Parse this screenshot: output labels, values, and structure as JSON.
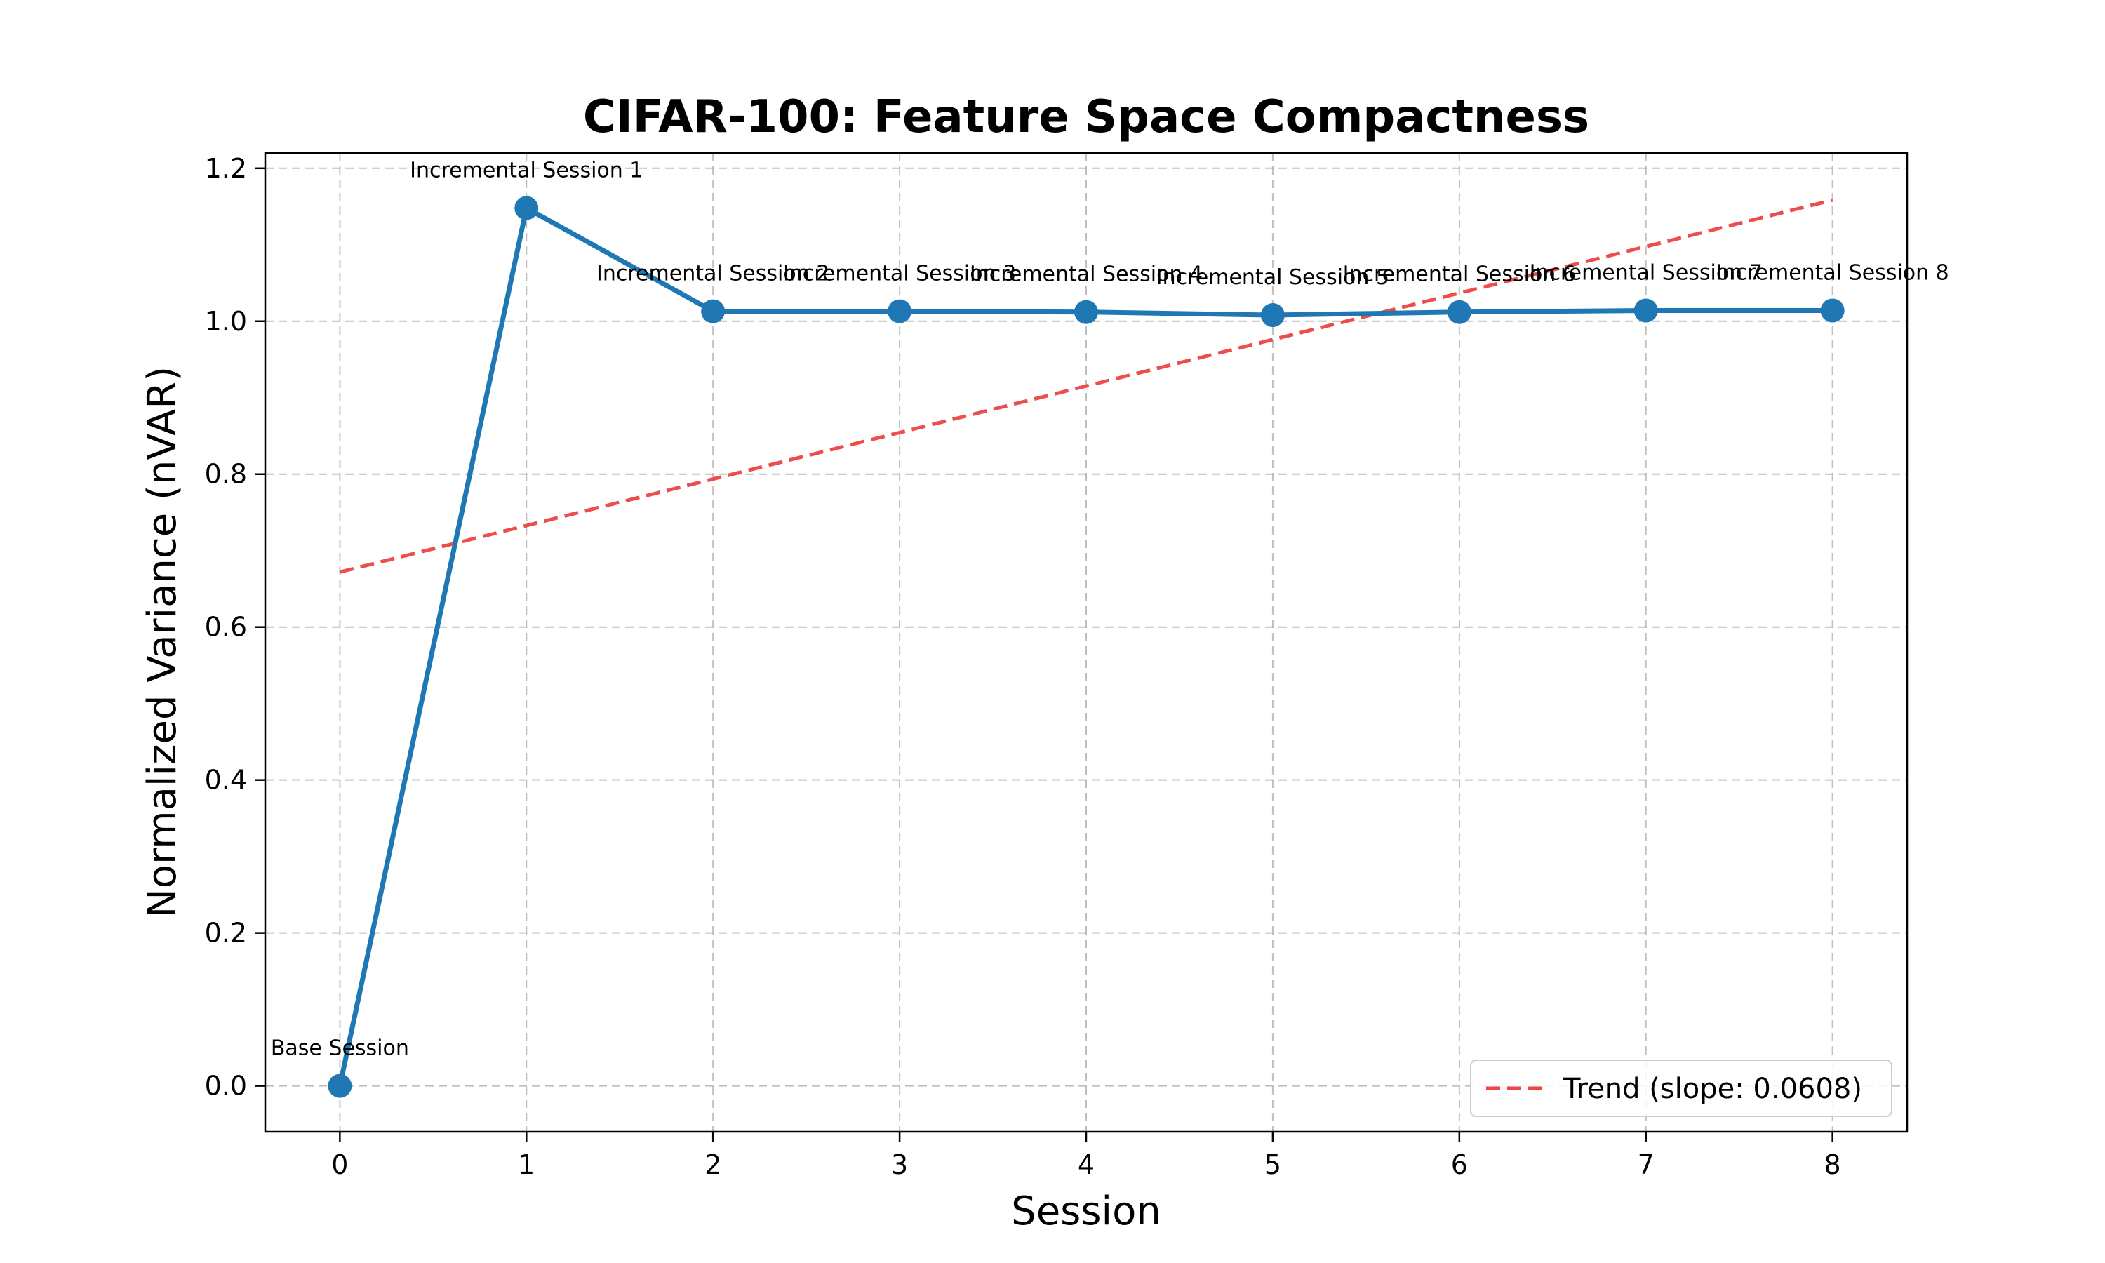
{
  "chart_data": {
    "type": "line",
    "title": "CIFAR-100: Feature Space Compactness",
    "xlabel": "Session",
    "ylabel": "Normalized Variance (nVAR)",
    "x": [
      0,
      1,
      2,
      3,
      4,
      5,
      6,
      7,
      8
    ],
    "xlim": [
      -0.4,
      8.4
    ],
    "ylim": [
      -0.06,
      1.22
    ],
    "x_ticks": [
      0,
      1,
      2,
      3,
      4,
      5,
      6,
      7,
      8
    ],
    "y_ticks": [
      0.0,
      0.2,
      0.4,
      0.6,
      0.8,
      1.0,
      1.2
    ],
    "y_tick_labels": [
      "0.0",
      "0.2",
      "0.4",
      "0.6",
      "0.8",
      "1.0",
      "1.2"
    ],
    "grid": true,
    "legend_position": "lower-right",
    "series": [
      {
        "values": [
          0.0,
          1.148,
          1.013,
          1.013,
          1.012,
          1.008,
          1.012,
          1.014,
          1.014
        ],
        "color": "#1f77b4",
        "style": "solid",
        "marker": "circle",
        "point_labels": [
          "Base Session",
          "Incremental Session 1",
          "Incremental Session 2",
          "Incremental Session 3",
          "Incremental Session 4",
          "Incremental Session 5",
          "Incremental Session 6",
          "Incremental Session 7",
          "Incremental Session 8"
        ]
      },
      {
        "name": "Trend (slope: 0.0608)",
        "values": [
          0.672,
          0.7328,
          0.7936,
          0.8544,
          0.9152,
          0.976,
          1.0368,
          1.0976,
          1.1584
        ],
        "color": "#ee4444",
        "style": "dashed"
      }
    ]
  }
}
